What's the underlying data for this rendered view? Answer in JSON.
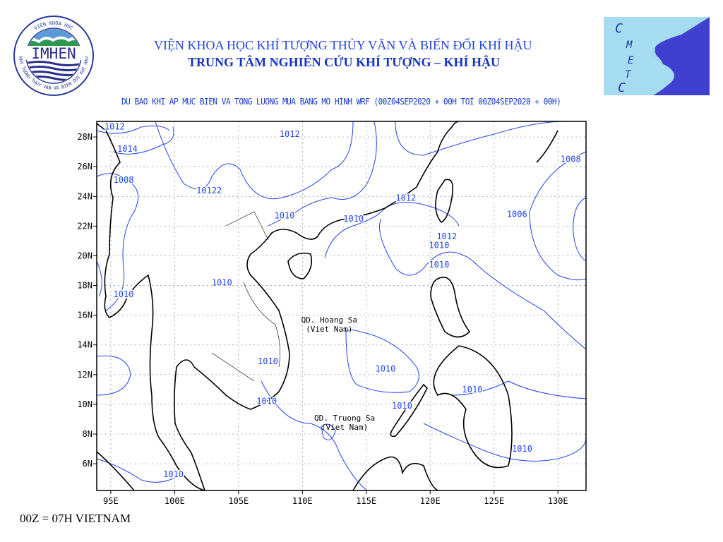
{
  "header": {
    "institute_name": "VIỆN KHOA HỌC KHÍ TƯỢNG THỦY VĂN VÀ BIẾN ĐỔI KHÍ HẬU",
    "center_name": "TRUNG TÂM NGHIÊN CỨU KHÍ TƯỢNG – KHÍ HẬU",
    "left_logo": {
      "text": "IMHEN",
      "ring_text": "VIEN KHOA HOC KHI TUONG THUY VAN VA BIEN DOI KHI HAU"
    },
    "right_logo": {
      "text": "CMETC",
      "colors": {
        "background": "#a6dcef",
        "swoosh": "#3f3fd0"
      }
    }
  },
  "map": {
    "title": "DU BAO KHI AP MUC BIEN VA TONG LUONG MUA BANG MO HINH WRF (00Z04SEP2020 + 00H TOI 00Z04SEP2020 + 00H)",
    "lon_range": [
      93.9,
      132.2
    ],
    "lat_range": [
      4.2,
      29.05
    ],
    "grid": true,
    "x_ticks": [
      "95E",
      "100E",
      "105E",
      "110E",
      "115E",
      "120E",
      "125E",
      "130E"
    ],
    "x_tick_values": [
      95,
      100,
      105,
      110,
      115,
      120,
      125,
      130
    ],
    "y_ticks": [
      "6N",
      "8N",
      "10N",
      "12N",
      "14N",
      "16N",
      "18N",
      "20N",
      "22N",
      "24N",
      "26N",
      "28N"
    ],
    "y_tick_values": [
      6,
      8,
      10,
      12,
      14,
      16,
      18,
      20,
      22,
      24,
      26,
      28
    ],
    "contour_color": "#2244ee",
    "coast_color": "#000000",
    "contour_labels": [
      {
        "text": "1012",
        "lon": 95.3,
        "lat": 28.7
      },
      {
        "text": "1014",
        "lon": 96.3,
        "lat": 27.2
      },
      {
        "text": "1008",
        "lon": 96.0,
        "lat": 25.1
      },
      {
        "text": "10122",
        "lon": 102.7,
        "lat": 24.4
      },
      {
        "text": "1012",
        "lon": 109.0,
        "lat": 28.2
      },
      {
        "text": "1010",
        "lon": 108.6,
        "lat": 22.7
      },
      {
        "text": "1010",
        "lon": 114.0,
        "lat": 22.5
      },
      {
        "text": "1012",
        "lon": 118.1,
        "lat": 23.9
      },
      {
        "text": "1012",
        "lon": 121.3,
        "lat": 21.3
      },
      {
        "text": "1010",
        "lon": 120.7,
        "lat": 20.7
      },
      {
        "text": "1008",
        "lon": 131.0,
        "lat": 26.5
      },
      {
        "text": "1006",
        "lon": 126.8,
        "lat": 22.8
      },
      {
        "text": "1010",
        "lon": 120.7,
        "lat": 19.4
      },
      {
        "text": "1010",
        "lon": 103.7,
        "lat": 18.2
      },
      {
        "text": "1010",
        "lon": 96.0,
        "lat": 17.4
      },
      {
        "text": "1010",
        "lon": 107.3,
        "lat": 12.9
      },
      {
        "text": "1010",
        "lon": 116.5,
        "lat": 12.4
      },
      {
        "text": "1010",
        "lon": 107.2,
        "lat": 10.2
      },
      {
        "text": "1010",
        "lon": 117.8,
        "lat": 9.9
      },
      {
        "text": "1010",
        "lon": 123.3,
        "lat": 11.0
      },
      {
        "text": "1010",
        "lon": 127.2,
        "lat": 7.0
      },
      {
        "text": "1010",
        "lon": 99.9,
        "lat": 5.3
      }
    ],
    "place_labels": [
      {
        "line1": "QD. Hoang Sa",
        "line2": "(Viet Nam)",
        "lon": 112.1,
        "lat": 15.5
      },
      {
        "line1": "QD. Truong Sa",
        "line2": "(Viet Nam)",
        "lon": 113.3,
        "lat": 8.9
      }
    ]
  },
  "footer": {
    "time_note": "00Z = 07H VIETNAM"
  }
}
